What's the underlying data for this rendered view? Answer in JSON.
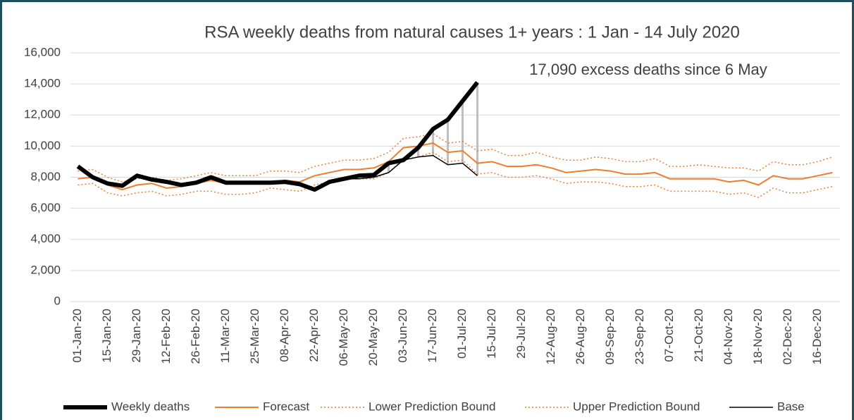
{
  "chart_data": {
    "type": "line",
    "title": "RSA weekly deaths from natural causes 1+ years : 1 Jan - 14 July 2020",
    "annotation": "17,090 excess deaths since 6 May",
    "categories": [
      "01-Jan-20",
      null,
      "15-Jan-20",
      null,
      "29-Jan-20",
      null,
      "12-Feb-20",
      null,
      "26-Feb-20",
      null,
      "11-Mar-20",
      null,
      "25-Mar-20",
      null,
      "08-Apr-20",
      null,
      "22-Apr-20",
      null,
      "06-May-20",
      null,
      "20-May-20",
      null,
      "03-Jun-20",
      null,
      "17-Jun-20",
      null,
      "01-Jul-20",
      null,
      "15-Jul-20",
      null,
      "29-Jul-20",
      null,
      "12-Aug-20",
      null,
      "26-Aug-20",
      null,
      "09-Sep-20",
      null,
      "23-Sep-20",
      null,
      "07-Oct-20",
      null,
      "21-Oct-20",
      null,
      "04-Nov-20",
      null,
      "18-Nov-20",
      null,
      "02-Dec-20",
      null,
      "16-Dec-20",
      null
    ],
    "series": [
      {
        "name": "Weekly deaths",
        "color": "#000000",
        "width": 6,
        "dash": false,
        "values": [
          8700,
          8000,
          7600,
          7450,
          8100,
          7850,
          7700,
          7500,
          7650,
          8000,
          7650,
          7650,
          7650,
          7650,
          7700,
          7550,
          7200,
          7700,
          7900,
          8100,
          8150,
          8900,
          9100,
          9900,
          11100,
          11700,
          12900,
          14100,
          null,
          null,
          null,
          null,
          null,
          null,
          null,
          null,
          null,
          null,
          null,
          null,
          null,
          null,
          null,
          null,
          null,
          null,
          null,
          null,
          null,
          null,
          null,
          null
        ]
      },
      {
        "name": "Forecast",
        "color": "#ed7d31",
        "width": 2,
        "dash": false,
        "values": [
          7900,
          8000,
          7500,
          7200,
          7500,
          7600,
          7300,
          7400,
          7600,
          7800,
          7600,
          7600,
          7600,
          7700,
          7800,
          7700,
          8100,
          8300,
          8500,
          8500,
          8600,
          9000,
          9900,
          10000,
          10200,
          9600,
          9700,
          8900,
          9000,
          8700,
          8700,
          8800,
          8600,
          8300,
          8400,
          8500,
          8400,
          8200,
          8200,
          8300,
          7900,
          7900,
          7900,
          7900,
          7700,
          7800,
          7500,
          8100,
          7900,
          7900,
          8100,
          8300
        ]
      },
      {
        "name": "Lower Prediction Bound",
        "color": "#ed7d31",
        "width": 1.5,
        "dash": true,
        "values": [
          7500,
          7600,
          7000,
          6800,
          7000,
          7100,
          6800,
          6900,
          7100,
          7100,
          6900,
          6900,
          7000,
          7300,
          7200,
          7100,
          7500,
          7700,
          7900,
          7900,
          7900,
          8300,
          9200,
          9300,
          9600,
          9000,
          9100,
          8200,
          8300,
          8000,
          8000,
          8100,
          7900,
          7600,
          7700,
          7700,
          7600,
          7400,
          7400,
          7500,
          7100,
          7100,
          7100,
          7100,
          6900,
          7000,
          6700,
          7300,
          7000,
          7000,
          7200,
          7400
        ]
      },
      {
        "name": "Upper Prediction Bound",
        "color": "#ed7d31",
        "width": 1.5,
        "dash": true,
        "values": [
          8400,
          8500,
          8000,
          7700,
          7900,
          8000,
          7800,
          7900,
          8100,
          8300,
          8100,
          8100,
          8100,
          8400,
          8400,
          8300,
          8700,
          8900,
          9100,
          9100,
          9200,
          9600,
          10500,
          10600,
          10800,
          10200,
          10300,
          9700,
          9800,
          9400,
          9400,
          9600,
          9300,
          9100,
          9100,
          9300,
          9200,
          9000,
          9000,
          9200,
          8700,
          8700,
          8800,
          8700,
          8600,
          8600,
          8400,
          9000,
          8800,
          8800,
          9000,
          9300
        ]
      },
      {
        "name": "Base",
        "color": "#000000",
        "width": 1.5,
        "dash": false,
        "values": [
          8700,
          8000,
          7600,
          7450,
          8100,
          7850,
          7700,
          7500,
          7650,
          8000,
          7650,
          7650,
          7650,
          7650,
          7700,
          7550,
          7200,
          7700,
          7900,
          7900,
          8000,
          8300,
          9100,
          9300,
          9400,
          8800,
          8900,
          8100,
          null,
          null,
          null,
          null,
          null,
          null,
          null,
          null,
          null,
          null,
          null,
          null,
          null,
          null,
          null,
          null,
          null,
          null,
          null,
          null,
          null,
          null,
          null,
          null
        ]
      }
    ],
    "ylim": [
      0,
      16000
    ],
    "yticks": [
      0,
      {
        "value": 2000,
        "label": "2,000"
      },
      {
        "value": 4000,
        "label": "4,000"
      },
      {
        "value": 6000,
        "label": "6,000"
      },
      {
        "value": 8000,
        "label": "8,000"
      },
      {
        "value": 10000,
        "label": "10,000"
      },
      {
        "value": 12000,
        "label": "12,000"
      },
      {
        "value": 14000,
        "label": "14,000"
      },
      {
        "value": 16000,
        "label": "16,000"
      }
    ],
    "grid": true,
    "legend": "bottom"
  }
}
